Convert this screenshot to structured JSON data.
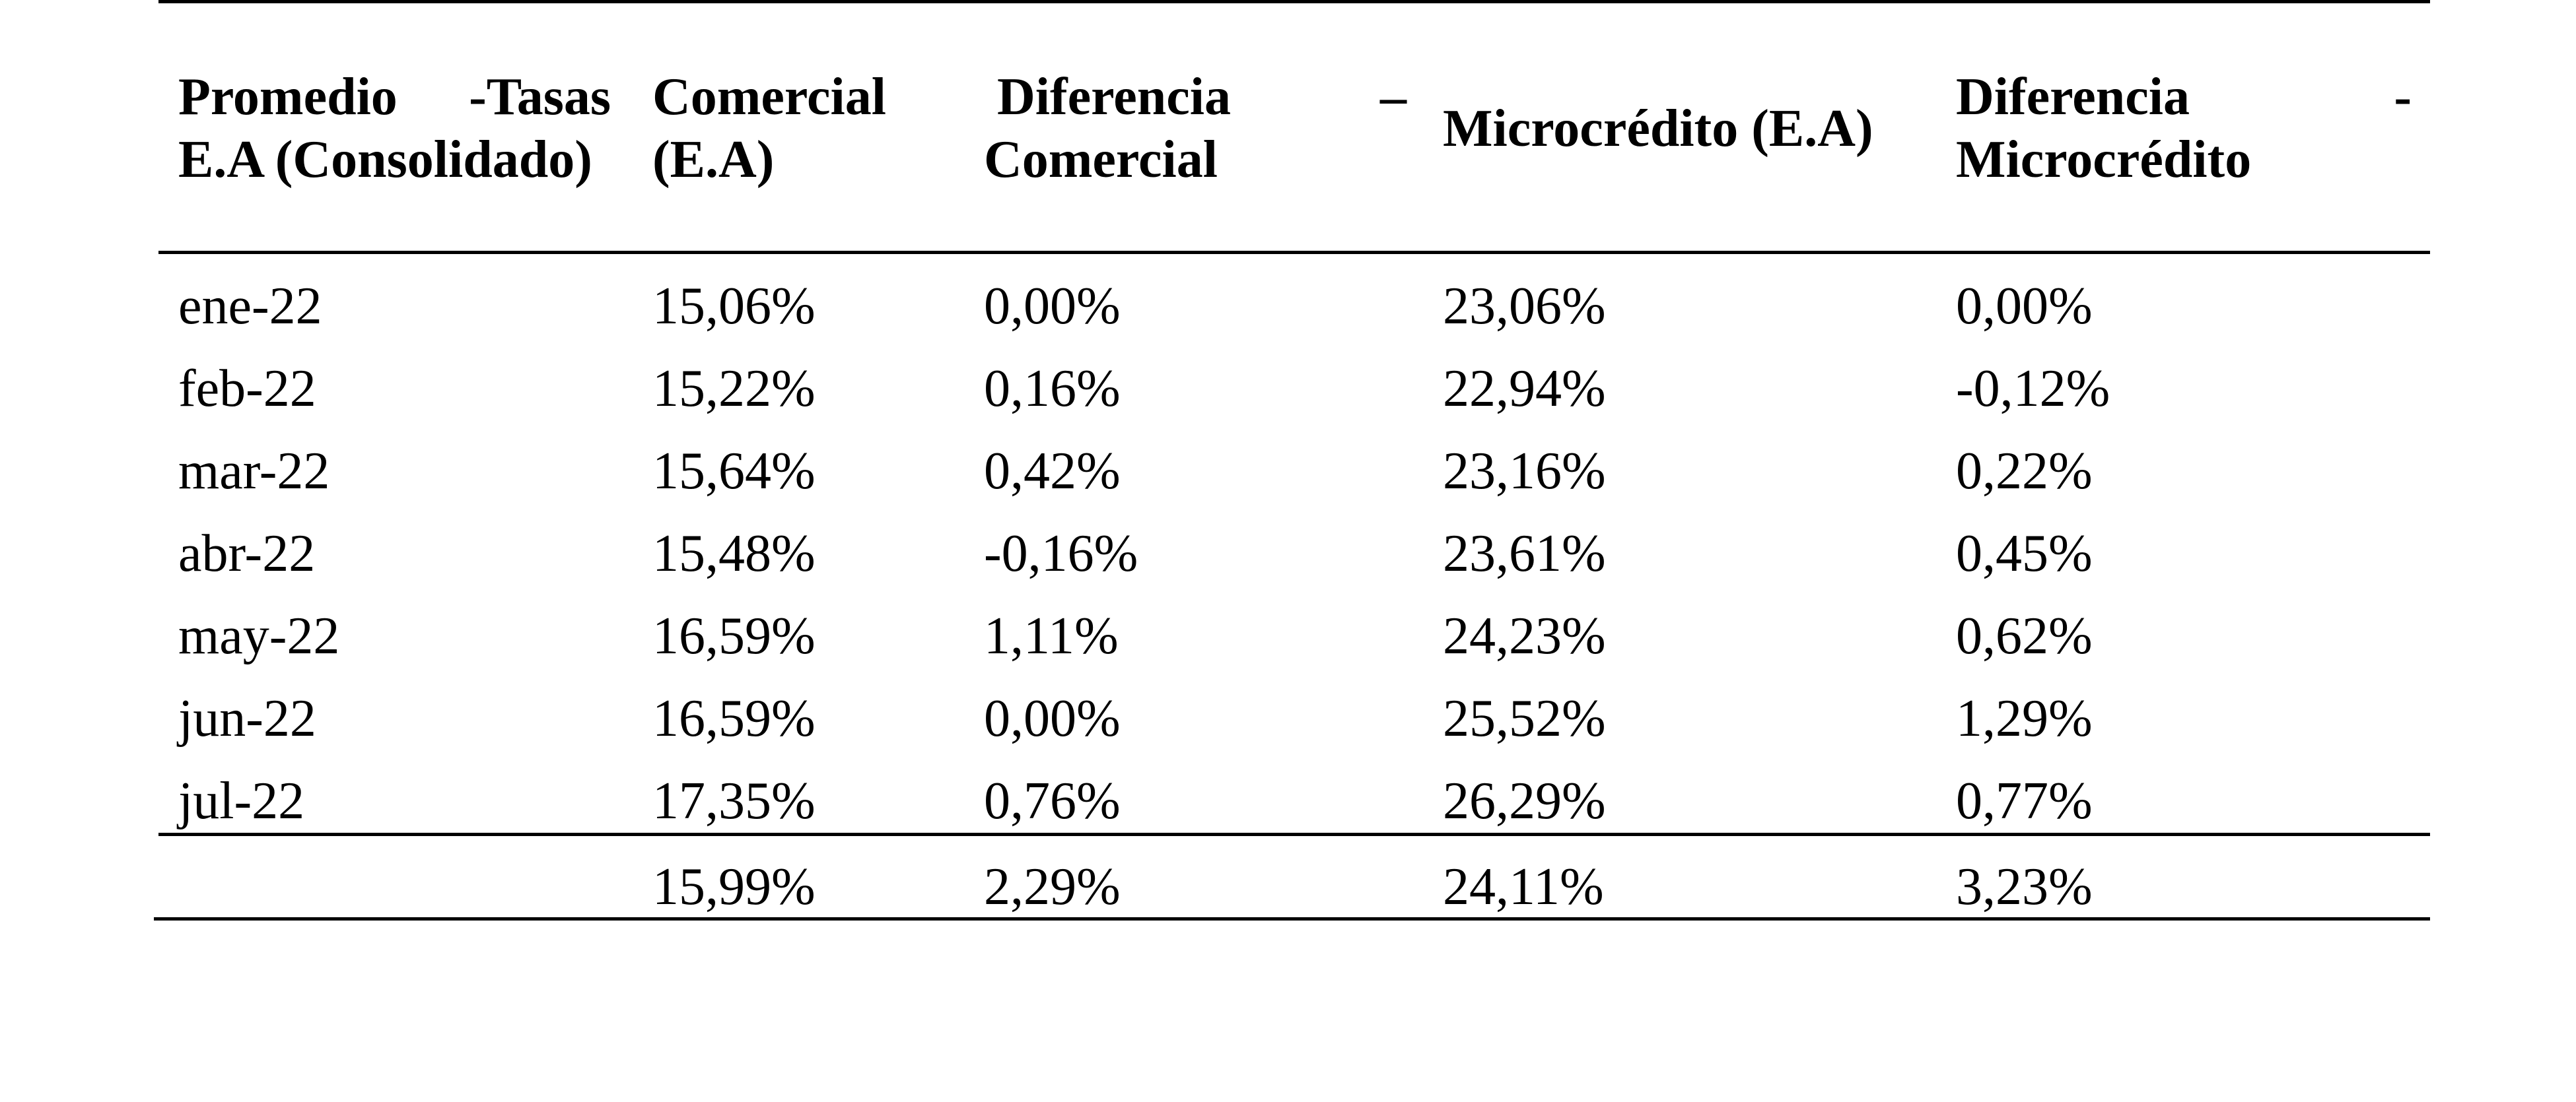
{
  "table": {
    "headers": {
      "col1_line1_left": "Promedio",
      "col1_line1_right": "-Tasas",
      "col1_line2": "E.A (Consolidado)",
      "col2_line1": "Comercial",
      "col2_line2": "(E.A)",
      "col3_line1_left": "Diferencia",
      "col3_line1_right": "–",
      "col3_line2": "Comercial",
      "col4": "Microcrédito (E.A)",
      "col5_line1_left": "Diferencia",
      "col5_line1_right": "-",
      "col5_line2": "Microcrédito"
    },
    "rows": [
      {
        "month": "ene-22",
        "comercial": "15,06%",
        "dif_comercial": "0,00%",
        "micro": "23,06%",
        "dif_micro": "0,00%"
      },
      {
        "month": "feb-22",
        "comercial": "15,22%",
        "dif_comercial": "0,16%",
        "micro": "22,94%",
        "dif_micro": "-0,12%"
      },
      {
        "month": "mar-22",
        "comercial": "15,64%",
        "dif_comercial": "0,42%",
        "micro": "23,16%",
        "dif_micro": "0,22%"
      },
      {
        "month": "abr-22",
        "comercial": "15,48%",
        "dif_comercial": "-0,16%",
        "micro": "23,61%",
        "dif_micro": "0,45%"
      },
      {
        "month": "may-22",
        "comercial": "16,59%",
        "dif_comercial": "1,11%",
        "micro": "24,23%",
        "dif_micro": "0,62%"
      },
      {
        "month": "jun-22",
        "comercial": "16,59%",
        "dif_comercial": "0,00%",
        "micro": "25,52%",
        "dif_micro": "1,29%"
      },
      {
        "month": "jul-22",
        "comercial": "17,35%",
        "dif_comercial": "0,76%",
        "micro": "26,29%",
        "dif_micro": "0,77%"
      }
    ],
    "totals": {
      "month": "",
      "comercial": "15,99%",
      "dif_comercial": "2,29%",
      "micro": "24,11%",
      "dif_micro": "3,23%"
    }
  }
}
